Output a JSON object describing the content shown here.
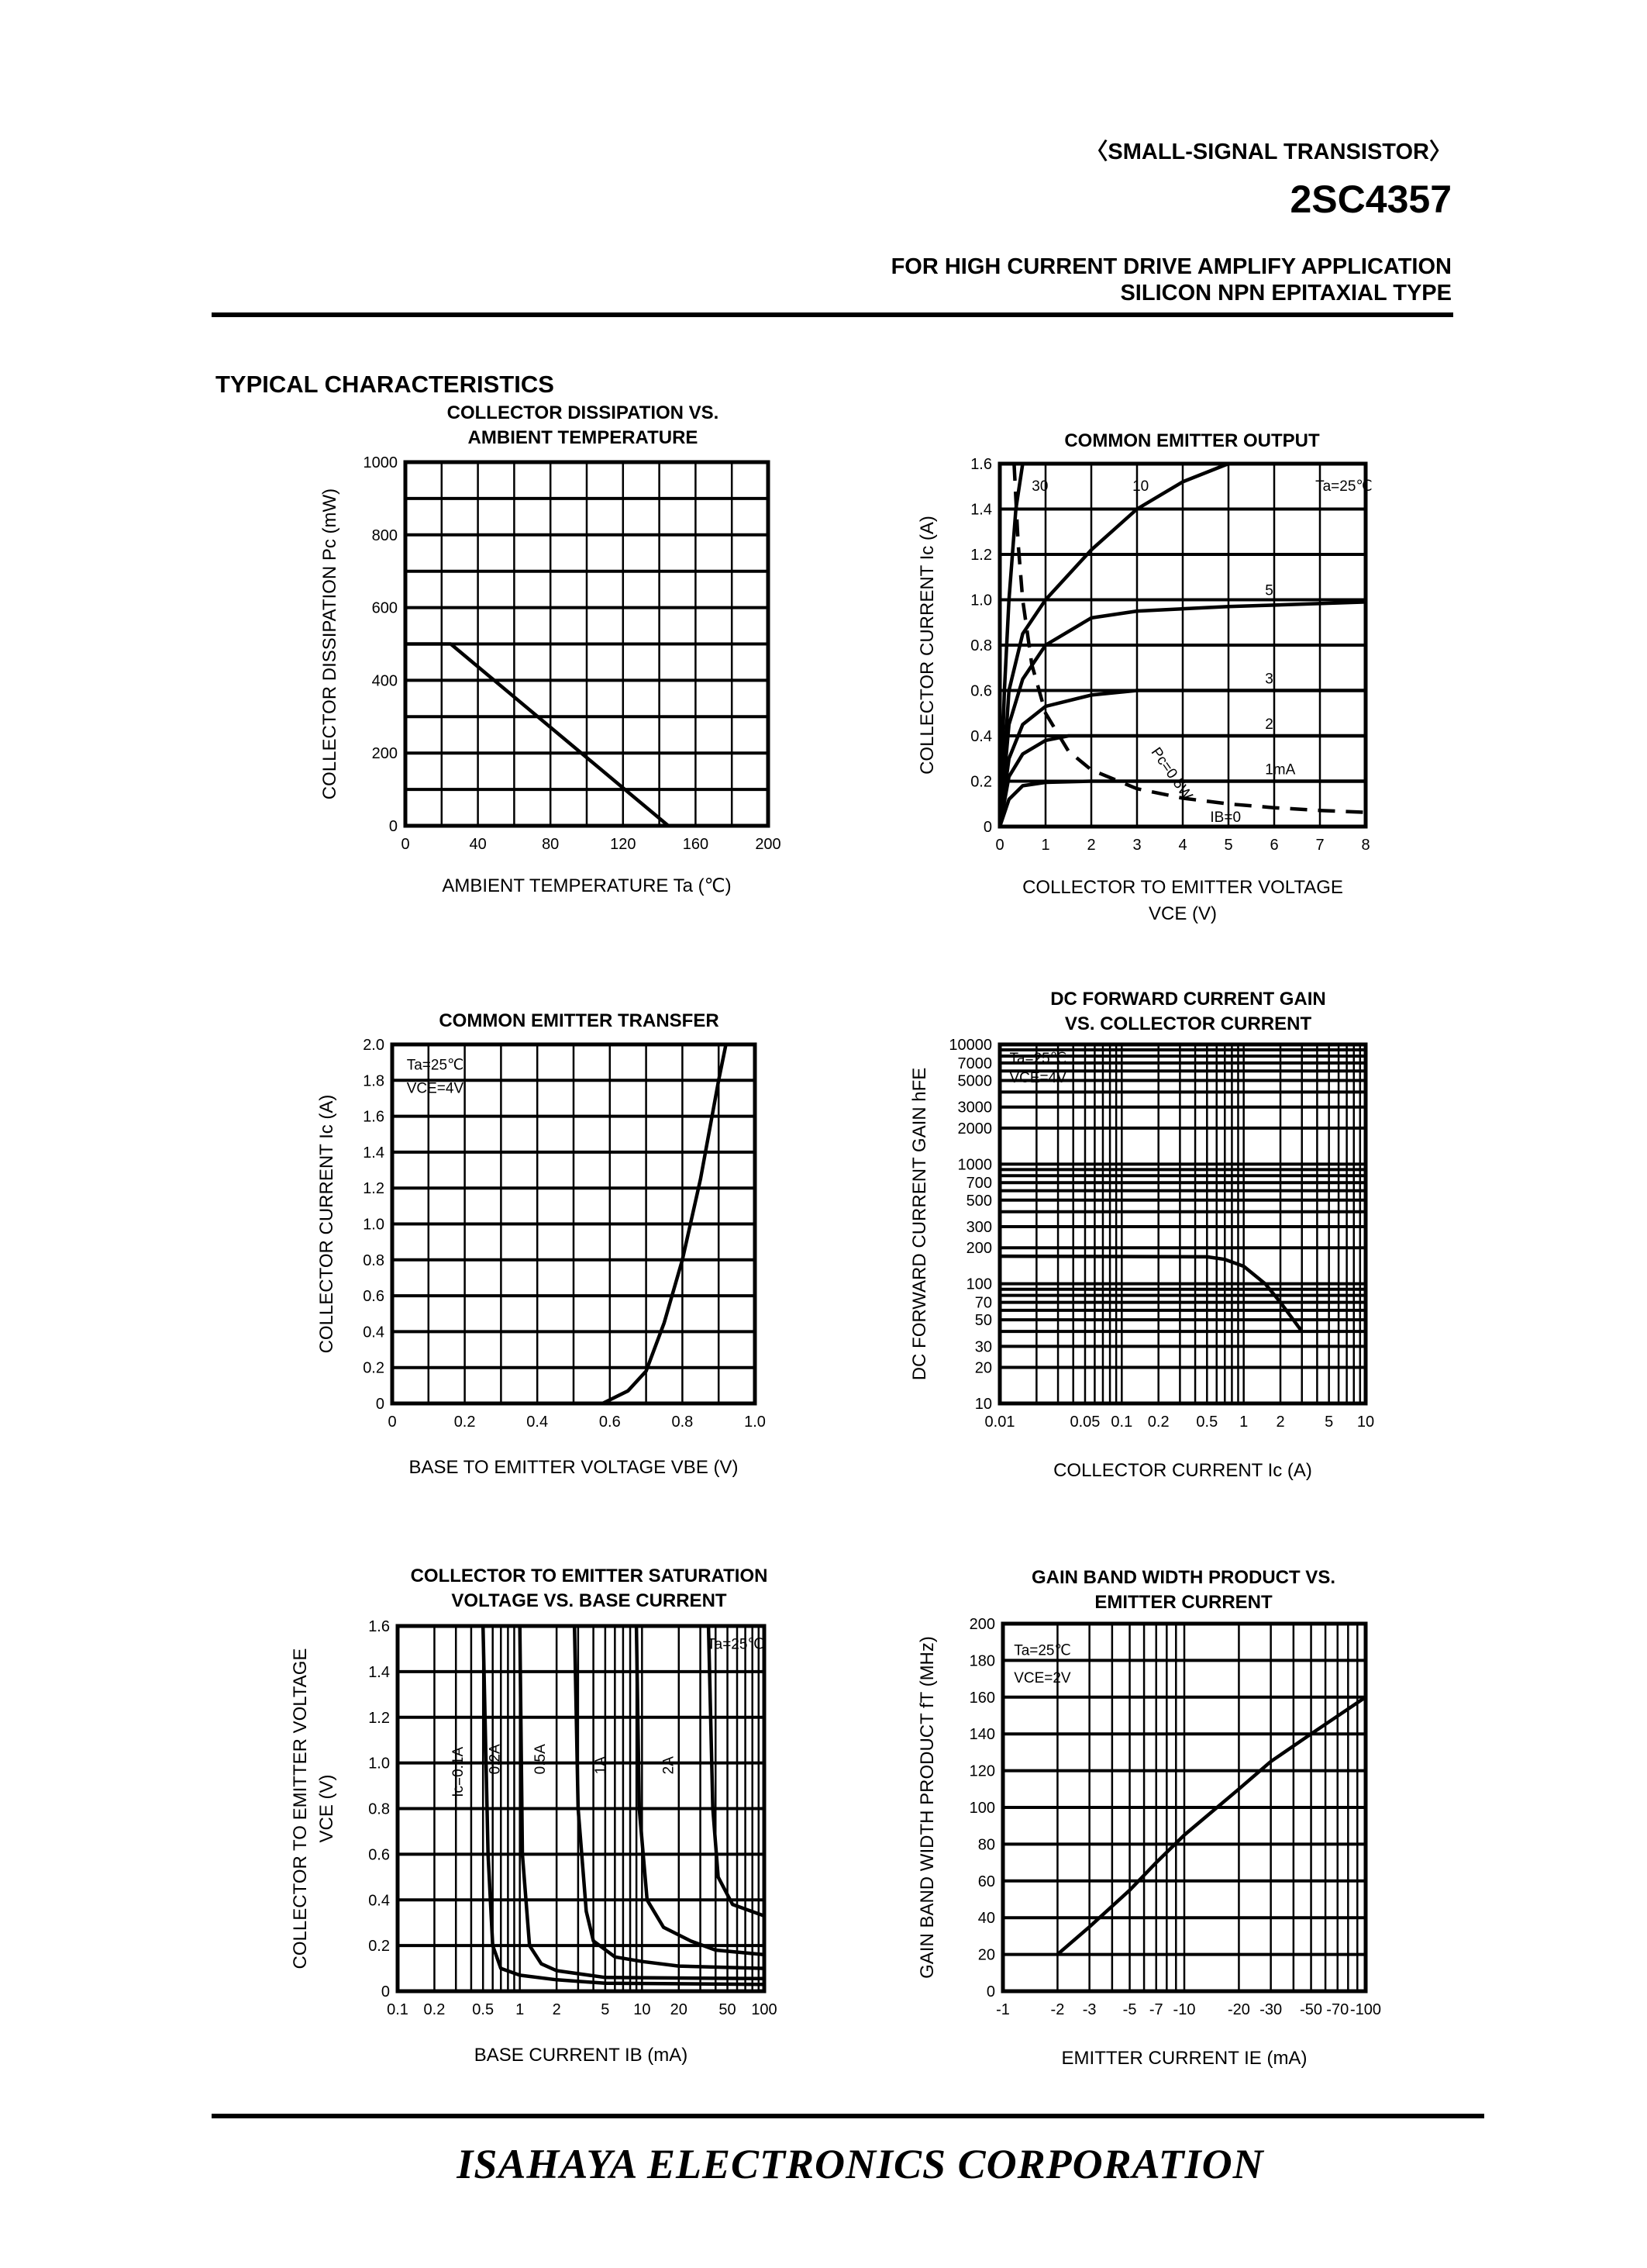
{
  "header": {
    "category": "〈SMALL-SIGNAL TRANSISTOR〉",
    "part_number": "2SC4357",
    "application": "FOR HIGH CURRENT DRIVE AMPLIFY APPLICATION",
    "type": "SILICON NPN EPITAXIAL TYPE"
  },
  "section_title": "TYPICAL CHARACTERISTICS",
  "footer": {
    "company": "ISAHAYA  ELECTRONICS CORPORATION"
  },
  "chart_data": [
    {
      "type": "line",
      "title": [
        "COLLECTOR DISSIPATION VS.",
        "AMBIENT TEMPERATURE"
      ],
      "ylabel": [
        "COLLECTOR DISSIPATION    Pc (mW)"
      ],
      "xlabel": [
        "AMBIENT TEMPERATURE    Ta (℃)"
      ],
      "xscale": "linear",
      "yscale": "linear",
      "xlim": [
        0,
        200
      ],
      "ylim": [
        0,
        1000
      ],
      "xgrid": 20,
      "ygrid": 100,
      "xticks": [
        0,
        40,
        80,
        120,
        160,
        200
      ],
      "xtick_labels": [
        "0",
        "40",
        "80",
        "120",
        "160",
        "200"
      ],
      "yticks": [
        0,
        200,
        400,
        600,
        800,
        1000
      ],
      "ytick_labels": [
        "0",
        "200",
        "400",
        "600",
        "800",
        "1000"
      ],
      "grid": true,
      "series": [
        {
          "x": [
            0,
            25,
            145
          ],
          "y": [
            500,
            500,
            0
          ]
        }
      ],
      "annotations": []
    },
    {
      "type": "line",
      "title": [
        "COMMON EMITTER OUTPUT"
      ],
      "ylabel": [
        "COLLECTOR CURRENT    Ic (A)"
      ],
      "xlabel": [
        "COLLECTOR TO EMITTER VOLTAGE",
        "VCE (V)"
      ],
      "xscale": "linear",
      "yscale": "linear",
      "xlim": [
        0,
        8
      ],
      "ylim": [
        0,
        1.6
      ],
      "xgrid": 1,
      "ygrid": 0.2,
      "xticks": [
        0,
        1,
        2,
        3,
        4,
        5,
        6,
        7,
        8
      ],
      "xtick_labels": [
        "0",
        "1",
        "2",
        "3",
        "4",
        "5",
        "6",
        "7",
        "8"
      ],
      "yticks": [
        0,
        0.2,
        0.4,
        0.6,
        0.8,
        1.0,
        1.2,
        1.4,
        1.6
      ],
      "ytick_labels": [
        "0",
        "0.2",
        "0.4",
        "0.6",
        "0.8",
        "1.0",
        "1.2",
        "1.4",
        "1.6"
      ],
      "grid": true,
      "series": [
        {
          "name": "1mA",
          "x": [
            0,
            0.2,
            0.5,
            1,
            2,
            8
          ],
          "y": [
            0,
            0.12,
            0.18,
            0.195,
            0.2,
            0.2
          ]
        },
        {
          "name": "2",
          "x": [
            0,
            0.2,
            0.5,
            1,
            1.5,
            8
          ],
          "y": [
            0,
            0.22,
            0.32,
            0.38,
            0.4,
            0.4
          ]
        },
        {
          "name": "3",
          "x": [
            0,
            0.2,
            0.5,
            1,
            2,
            3,
            8
          ],
          "y": [
            0,
            0.3,
            0.45,
            0.53,
            0.58,
            0.6,
            0.6
          ]
        },
        {
          "name": "5",
          "x": [
            0,
            0.2,
            0.5,
            1,
            2,
            3,
            5,
            8
          ],
          "y": [
            0,
            0.45,
            0.65,
            0.8,
            0.92,
            0.95,
            0.97,
            0.99
          ]
        },
        {
          "name": "10",
          "x": [
            0,
            0.2,
            0.5,
            1,
            2,
            3,
            4,
            5
          ],
          "y": [
            0,
            0.6,
            0.85,
            1.0,
            1.22,
            1.4,
            1.52,
            1.6
          ]
        },
        {
          "name": "30",
          "x": [
            0,
            0.1,
            0.2,
            0.35,
            0.5
          ],
          "y": [
            0,
            0.6,
            1.0,
            1.4,
            1.6
          ]
        },
        {
          "name": "Pc=0.5W",
          "dashed": true,
          "x": [
            0.3125,
            0.4,
            0.5,
            0.7,
            1,
            1.5,
            2,
            3,
            4,
            5,
            6,
            7,
            8
          ],
          "y": [
            1.6,
            1.25,
            1.0,
            0.714,
            0.5,
            0.333,
            0.25,
            0.167,
            0.125,
            0.1,
            0.083,
            0.071,
            0.0625
          ]
        }
      ],
      "annotations": [
        "30",
        "10",
        "Ta=25℃",
        "5",
        "3",
        "2",
        "1mA",
        "IB=0",
        "Pc=0.5W"
      ]
    },
    {
      "type": "line",
      "title": [
        "COMMON EMITTER TRANSFER"
      ],
      "ylabel": [
        "COLLECTOR CURRENT    Ic (A)"
      ],
      "xlabel": [
        "BASE TO EMITTER VOLTAGE    VBE (V)"
      ],
      "xscale": "linear",
      "yscale": "linear",
      "xlim": [
        0,
        1.0
      ],
      "ylim": [
        0,
        2.0
      ],
      "xgrid": 0.1,
      "ygrid": 0.2,
      "xticks": [
        0,
        0.2,
        0.4,
        0.6,
        0.8,
        1.0
      ],
      "xtick_labels": [
        "0",
        "0.2",
        "0.4",
        "0.6",
        "0.8",
        "1.0"
      ],
      "yticks": [
        0,
        0.2,
        0.4,
        0.6,
        0.8,
        1.0,
        1.2,
        1.4,
        1.6,
        1.8,
        2.0
      ],
      "ytick_labels": [
        "0",
        "0.2",
        "0.4",
        "0.6",
        "0.8",
        "1.0",
        "1.2",
        "1.4",
        "1.6",
        "1.8",
        "2.0"
      ],
      "grid": true,
      "series": [
        {
          "x": [
            0.58,
            0.65,
            0.7,
            0.75,
            0.8,
            0.85,
            0.9,
            0.92
          ],
          "y": [
            0,
            0.07,
            0.18,
            0.45,
            0.8,
            1.25,
            1.8,
            2.0
          ]
        }
      ],
      "annotations": [
        "Ta=25℃",
        "VCE=4V"
      ]
    },
    {
      "type": "line",
      "title": [
        "DC FORWARD CURRENT GAIN",
        "VS. COLLECTOR CURRENT"
      ],
      "ylabel": [
        "DC FORWARD CURRENT GAIN    hFE"
      ],
      "xlabel": [
        "COLLECTOR CURRENT    Ic (A)"
      ],
      "xscale": "log",
      "yscale": "log",
      "xlim": [
        0.01,
        10
      ],
      "ylim": [
        10,
        10000
      ],
      "xticks": [
        0.01,
        0.05,
        0.1,
        0.2,
        0.5,
        1,
        2,
        5,
        10
      ],
      "xtick_labels": [
        "0.01",
        "0.05",
        "0.1",
        "0.2",
        "0.5",
        "1",
        "2",
        "5",
        "10"
      ],
      "yticks": [
        10,
        20,
        30,
        50,
        70,
        100,
        200,
        300,
        500,
        700,
        1000,
        2000,
        3000,
        5000,
        7000,
        10000
      ],
      "ytick_labels": [
        "10",
        "20",
        "30",
        "50",
        "70",
        "100",
        "200",
        "300",
        "500",
        "700",
        "1000",
        "2000",
        "3000",
        "5000",
        "7000",
        "10000"
      ],
      "grid": true,
      "series": [
        {
          "x": [
            0.01,
            0.1,
            0.5,
            0.7,
            1,
            1.5,
            2,
            3
          ],
          "y": [
            170,
            169,
            168,
            160,
            140,
            100,
            70,
            40
          ]
        }
      ],
      "annotations": [
        "Ta=25℃",
        "VCE=4V"
      ]
    },
    {
      "type": "line",
      "title": [
        "COLLECTOR TO EMITTER SATURATION",
        "VOLTAGE VS. BASE CURRENT"
      ],
      "ylabel": [
        "COLLECTOR TO EMITTER VOLTAGE",
        "VCE (V)"
      ],
      "xlabel": [
        "BASE CURRENT    IB (mA)"
      ],
      "xscale": "log",
      "yscale": "linear",
      "xlim": [
        0.1,
        100
      ],
      "ylim": [
        0,
        1.6
      ],
      "ygrid": 0.2,
      "xticks": [
        0.1,
        0.2,
        0.5,
        1,
        2,
        5,
        10,
        20,
        50,
        100
      ],
      "xtick_labels": [
        "0.1",
        "0.2",
        "0.5",
        "1",
        "2",
        "5",
        "10",
        "20",
        "50",
        "100"
      ],
      "yticks": [
        0,
        0.2,
        0.4,
        0.6,
        0.8,
        1.0,
        1.2,
        1.4,
        1.6
      ],
      "ytick_labels": [
        "0",
        "0.2",
        "0.4",
        "0.6",
        "0.8",
        "1.0",
        "1.2",
        "1.4",
        "1.6"
      ],
      "grid": true,
      "series": [
        {
          "name": "Ic=0.1A",
          "x": [
            0.5,
            0.55,
            0.6,
            0.7,
            1,
            2,
            5,
            100
          ],
          "y": [
            1.6,
            0.6,
            0.2,
            0.1,
            0.07,
            0.05,
            0.035,
            0.03
          ]
        },
        {
          "name": "0.2A",
          "x": [
            1,
            1.05,
            1.2,
            1.5,
            2,
            5,
            100
          ],
          "y": [
            1.6,
            0.6,
            0.2,
            0.12,
            0.09,
            0.06,
            0.055
          ]
        },
        {
          "name": "0.5A",
          "x": [
            2.8,
            3,
            3.5,
            4,
            6,
            10,
            20,
            100
          ],
          "y": [
            1.6,
            0.8,
            0.35,
            0.22,
            0.15,
            0.13,
            0.11,
            0.1
          ]
        },
        {
          "name": "1A",
          "x": [
            9,
            9.5,
            11,
            15,
            25,
            40,
            100
          ],
          "y": [
            1.6,
            0.8,
            0.4,
            0.28,
            0.22,
            0.18,
            0.16
          ]
        },
        {
          "name": "2A",
          "x": [
            35,
            38,
            42,
            55,
            100
          ],
          "y": [
            1.6,
            0.8,
            0.5,
            0.38,
            0.33
          ]
        }
      ],
      "annotations": [
        "Ta=25℃",
        "Ic=0.1A",
        "0.2A",
        "0.5A",
        "1A",
        "2A"
      ]
    },
    {
      "type": "line",
      "title": [
        "GAIN BAND WIDTH PRODUCT VS.",
        "EMITTER CURRENT"
      ],
      "ylabel": [
        "GAIN BAND WIDTH PRODUCT    fT (MHz)"
      ],
      "xlabel": [
        "EMITTER CURRENT    IE (mA)"
      ],
      "xscale": "log",
      "yscale": "linear",
      "xlim": [
        -1,
        -100
      ],
      "ylim": [
        0,
        200
      ],
      "ygrid": 20,
      "xticks": [
        -1,
        -2,
        -3,
        -5,
        -7,
        -10,
        -20,
        -30,
        -50,
        -70,
        -100
      ],
      "xtick_labels": [
        "-1",
        "-2",
        "-3",
        "-5",
        "-7",
        "-10",
        "-20",
        "-30",
        "-50",
        "-70",
        "-100"
      ],
      "yticks": [
        0,
        20,
        40,
        60,
        80,
        100,
        120,
        140,
        160,
        180,
        200
      ],
      "ytick_labels": [
        "0",
        "20",
        "40",
        "60",
        "80",
        "100",
        "120",
        "140",
        "160",
        "180",
        "200"
      ],
      "grid": true,
      "series": [
        {
          "x": [
            -2,
            -3,
            -5,
            -7,
            -10,
            -20,
            -30,
            -50,
            -100
          ],
          "y": [
            20,
            35,
            55,
            70,
            85,
            110,
            125,
            140,
            160
          ]
        }
      ],
      "annotations": [
        "Ta=25℃",
        "VCE=2V"
      ]
    }
  ]
}
